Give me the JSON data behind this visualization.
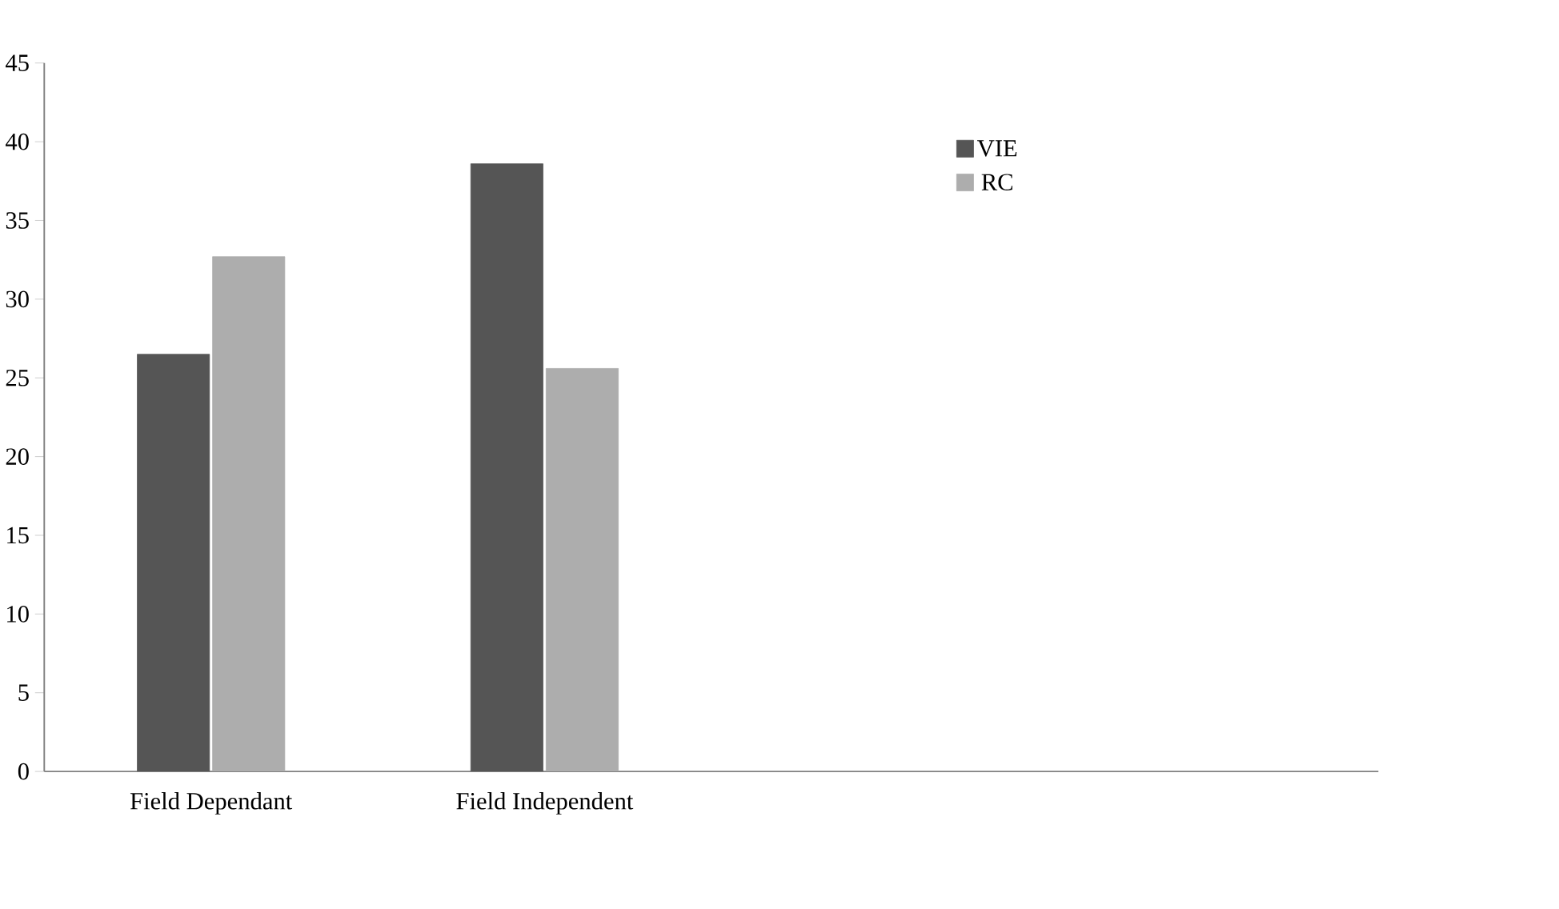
{
  "chart_data": {
    "type": "bar",
    "categories": [
      "Field Dependant",
      "Field Independent",
      null,
      null
    ],
    "series": [
      {
        "name": "VIE",
        "color": "#555555",
        "values": [
          26.5,
          38.6,
          null,
          null
        ]
      },
      {
        "name": "RC",
        "color": "#adadad",
        "values": [
          32.7,
          25.6,
          null,
          null
        ]
      }
    ],
    "ylim": [
      0,
      45
    ],
    "yticks": [
      0,
      5,
      10,
      15,
      20,
      25,
      30,
      35,
      40,
      45
    ],
    "grid": false,
    "legend": "top right"
  }
}
